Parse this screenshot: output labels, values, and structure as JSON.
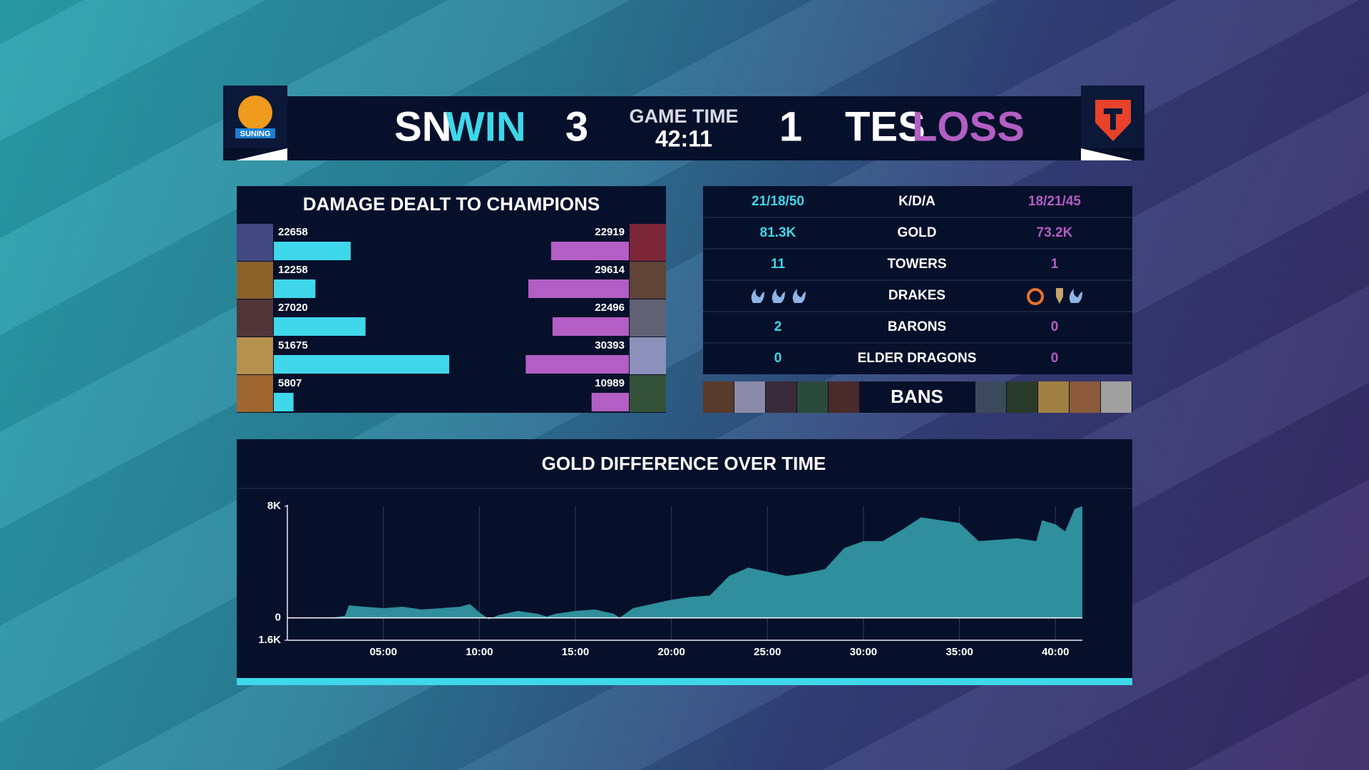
{
  "header": {
    "logo_a": "SUNING",
    "team_a": "SN",
    "result_a": "WIN",
    "score_a": 3,
    "game_time_label": "GAME TIME",
    "game_time": "42:11",
    "score_b": 1,
    "team_b": "TES",
    "result_b": "LOSS"
  },
  "damage": {
    "title": "DAMAGE DEALT TO CHAMPIONS",
    "team_a": {
      "color": "#3fd7ea",
      "values": [
        22658,
        12258,
        27020,
        51675,
        5807
      ]
    },
    "team_b": {
      "color": "#b35ec4",
      "values": [
        22919,
        29614,
        22496,
        30393,
        10989
      ]
    }
  },
  "stats": {
    "rows": [
      {
        "a": "21/18/50",
        "label": "K/D/A",
        "b": "18/21/45"
      },
      {
        "a": "81.3K",
        "label": "GOLD",
        "b": "73.2K"
      },
      {
        "a": 11,
        "label": "TOWERS",
        "b": 1
      },
      {
        "label": "DRAKES"
      },
      {
        "a": 2,
        "label": "BARONS",
        "b": 0
      },
      {
        "a": 0,
        "label": "ELDER DRAGONS",
        "b": 0
      }
    ]
  },
  "bans": {
    "label": "BANS"
  },
  "chart_data": {
    "type": "area",
    "title": "GOLD DIFFERENCE OVER TIME",
    "color": "#2f8f9c",
    "x": [
      0,
      1.5,
      2.5,
      3,
      3.2,
      4,
      5,
      6,
      7,
      8,
      9,
      9.5,
      10,
      10.5,
      11,
      12,
      13,
      13.5,
      14,
      15,
      16,
      17,
      17.3,
      18,
      19,
      20,
      21,
      22,
      23,
      24,
      25,
      26,
      27,
      28,
      29,
      30,
      31,
      32,
      33,
      34,
      35,
      36,
      37,
      38,
      39,
      39.3,
      40,
      40.5,
      41,
      41.4
    ],
    "values": [
      0,
      0,
      50,
      150,
      900,
      800,
      700,
      800,
      600,
      700,
      800,
      1000,
      400,
      -100,
      200,
      500,
      300,
      100,
      300,
      500,
      600,
      300,
      0,
      700,
      1000,
      1300,
      1500,
      1600,
      3000,
      3600,
      3300,
      3000,
      3200,
      3500,
      5000,
      5500,
      5500,
      6300,
      7200,
      7000,
      6800,
      5500,
      5600,
      5700,
      5500,
      7000,
      6700,
      6200,
      7800,
      8000
    ],
    "xlim": [
      0,
      41.4
    ],
    "ylim": [
      -1600,
      8000
    ],
    "xticks": [
      {
        "value": 5,
        "label": "05:00"
      },
      {
        "value": 10,
        "label": "10:00"
      },
      {
        "value": 15,
        "label": "15:00"
      },
      {
        "value": 20,
        "label": "20:00"
      },
      {
        "value": 25,
        "label": "25:00"
      },
      {
        "value": 30,
        "label": "30:00"
      },
      {
        "value": 35,
        "label": "35:00"
      },
      {
        "value": 40,
        "label": "40:00"
      }
    ],
    "yticks": [
      {
        "value": 8000,
        "label": "8K"
      },
      0,
      {
        "value": -1600,
        "label": "1.6K"
      }
    ],
    "grid": true
  }
}
